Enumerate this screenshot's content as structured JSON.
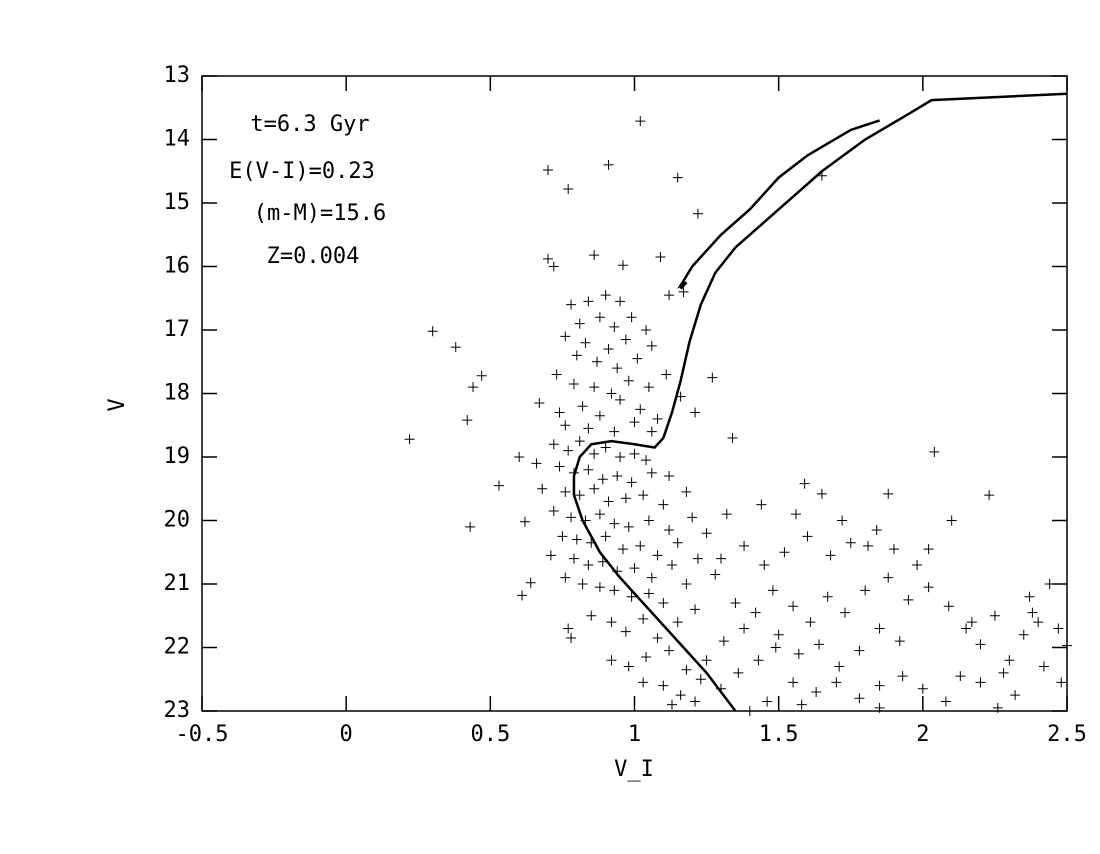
{
  "chart_data": {
    "type": "scatter",
    "x_label": "V_I",
    "y_label": "V",
    "annotations": [
      "t=6.3 Gyr",
      "E(V-I)=0.23",
      "(m-M)=15.6",
      "Z=0.004"
    ],
    "xlim": [
      -0.5,
      2.5
    ],
    "xticks": [
      -0.5,
      0,
      0.5,
      1,
      1.5,
      2,
      2.5
    ],
    "ylim": [
      23,
      13
    ],
    "yticks": [
      13,
      14,
      15,
      16,
      17,
      18,
      19,
      20,
      21,
      22,
      23
    ],
    "color": "#000000",
    "marker": "+",
    "x": [
      0.22,
      0.3,
      0.38,
      0.42,
      0.44,
      0.47,
      0.43,
      0.53,
      0.61,
      0.62,
      0.64,
      0.7,
      0.77,
      0.91,
      1.02,
      1.15,
      1.65,
      1.22,
      0.7,
      0.72,
      0.86,
      0.96,
      1.09,
      1.17,
      1.12,
      2.04,
      2.23,
      1.34,
      1.88,
      1.59,
      1.65,
      0.78,
      0.84,
      0.9,
      0.95,
      0.81,
      0.88,
      0.93,
      0.99,
      1.04,
      0.76,
      0.83,
      0.91,
      0.97,
      1.06,
      0.8,
      0.87,
      0.94,
      1.01,
      0.73,
      0.79,
      0.86,
      0.92,
      0.98,
      1.05,
      1.11,
      0.67,
      0.74,
      0.82,
      0.88,
      0.95,
      1.02,
      1.08,
      1.16,
      1.27,
      1.21,
      0.76,
      0.84,
      0.93,
      1.0,
      1.06,
      0.72,
      0.77,
      0.81,
      0.86,
      0.9,
      0.95,
      1.0,
      1.04,
      0.6,
      0.66,
      0.74,
      0.79,
      0.84,
      0.89,
      0.94,
      0.99,
      1.06,
      1.12,
      0.68,
      0.76,
      0.81,
      0.86,
      0.91,
      0.97,
      1.03,
      1.1,
      1.18,
      0.72,
      0.78,
      0.83,
      0.88,
      0.93,
      0.98,
      1.05,
      1.12,
      1.2,
      0.75,
      0.8,
      0.85,
      0.9,
      0.96,
      1.02,
      1.08,
      1.15,
      1.25,
      0.71,
      0.79,
      0.84,
      0.89,
      0.94,
      1.0,
      1.06,
      1.13,
      1.22,
      0.76,
      0.82,
      0.88,
      0.93,
      0.99,
      1.05,
      1.1,
      1.18,
      1.28,
      0.77,
      0.78,
      0.85,
      0.92,
      0.97,
      1.03,
      1.08,
      1.15,
      1.21,
      0.92,
      0.98,
      1.04,
      1.12,
      1.18,
      1.25,
      1.31,
      1.38,
      1.03,
      1.1,
      1.16,
      1.23,
      1.3,
      1.36,
      1.43,
      1.49,
      1.35,
      1.42,
      1.48,
      1.55,
      1.61,
      1.67,
      1.73,
      1.3,
      1.38,
      1.45,
      1.52,
      1.6,
      1.68,
      1.75,
      1.84,
      1.5,
      1.57,
      1.64,
      1.71,
      1.78,
      1.85,
      1.92,
      1.55,
      1.63,
      1.7,
      1.78,
      1.85,
      1.93,
      2.0,
      1.8,
      1.88,
      1.95,
      2.02,
      2.09,
      1.9,
      1.98,
      2.1,
      2.02,
      1.32,
      1.44,
      1.56,
      1.72,
      1.81,
      2.15,
      2.2,
      2.25,
      2.3,
      2.35,
      2.4,
      2.44,
      2.47,
      2.37,
      2.28,
      2.2,
      2.32,
      2.42,
      2.48,
      2.5,
      2.13,
      2.08,
      2.26,
      1.4,
      1.21,
      1.13,
      1.46,
      1.58,
      1.85,
      2.17,
      2.38
    ],
    "values": [
      18.72,
      17.02,
      17.27,
      18.42,
      17.9,
      17.72,
      20.1,
      19.45,
      21.18,
      20.02,
      20.98,
      14.48,
      14.78,
      14.4,
      13.71,
      14.6,
      14.57,
      15.17,
      15.88,
      16.0,
      15.82,
      15.98,
      15.85,
      16.4,
      16.45,
      18.92,
      19.6,
      18.7,
      19.58,
      19.42,
      19.58,
      16.6,
      16.55,
      16.45,
      16.55,
      16.9,
      16.8,
      16.95,
      16.8,
      17.0,
      17.1,
      17.2,
      17.3,
      17.15,
      17.25,
      17.4,
      17.5,
      17.6,
      17.45,
      17.7,
      17.85,
      17.9,
      18.0,
      17.8,
      17.9,
      17.7,
      18.15,
      18.3,
      18.2,
      18.35,
      18.1,
      18.25,
      18.4,
      18.05,
      17.75,
      18.3,
      18.5,
      18.55,
      18.6,
      18.45,
      18.6,
      18.8,
      18.9,
      18.75,
      18.95,
      18.85,
      19.0,
      18.95,
      19.05,
      19.0,
      19.1,
      19.15,
      19.25,
      19.2,
      19.35,
      19.3,
      19.4,
      19.25,
      19.3,
      19.5,
      19.55,
      19.6,
      19.5,
      19.7,
      19.65,
      19.6,
      19.75,
      19.55,
      19.85,
      19.95,
      20.0,
      19.9,
      20.05,
      20.1,
      20.0,
      20.15,
      19.95,
      20.25,
      20.3,
      20.35,
      20.25,
      20.45,
      20.4,
      20.55,
      20.35,
      20.2,
      20.55,
      20.6,
      20.7,
      20.65,
      20.8,
      20.75,
      20.9,
      20.7,
      20.6,
      20.9,
      21.0,
      21.05,
      21.1,
      21.2,
      21.15,
      21.3,
      21.0,
      20.85,
      21.7,
      21.85,
      21.5,
      21.6,
      21.75,
      21.55,
      21.85,
      21.6,
      21.4,
      22.2,
      22.3,
      22.15,
      22.05,
      22.35,
      22.2,
      21.9,
      21.7,
      22.55,
      22.6,
      22.75,
      22.5,
      22.65,
      22.4,
      22.2,
      22.0,
      21.3,
      21.45,
      21.1,
      21.35,
      21.6,
      21.2,
      21.45,
      20.6,
      20.4,
      20.7,
      20.5,
      20.25,
      20.55,
      20.35,
      20.15,
      21.8,
      22.1,
      21.95,
      22.3,
      22.05,
      21.7,
      21.9,
      22.55,
      22.7,
      22.55,
      22.8,
      22.6,
      22.45,
      22.65,
      21.1,
      20.9,
      21.25,
      21.05,
      21.35,
      20.45,
      20.7,
      20.0,
      20.45,
      19.9,
      19.75,
      19.9,
      20.0,
      20.4,
      21.7,
      21.95,
      21.5,
      22.2,
      21.8,
      21.6,
      21.0,
      21.7,
      21.2,
      22.4,
      22.55,
      22.75,
      22.3,
      22.55,
      21.97,
      22.45,
      22.85,
      22.95,
      23.0,
      22.85,
      22.9,
      22.85,
      22.9,
      22.95,
      21.6,
      21.45
    ],
    "lines": [
      {
        "color": "#000000",
        "x": [
          1.35,
          1.25,
          1.15,
          1.05,
          0.95,
          0.88,
          0.82,
          0.79,
          0.79,
          0.81,
          0.85,
          0.92,
          1.0,
          1.07,
          1.1,
          1.13,
          1.16,
          1.19,
          1.23,
          1.28,
          1.35,
          1.45,
          1.55,
          1.65,
          1.8,
          1.95,
          2.03,
          2.5
        ],
        "values": [
          23.0,
          22.4,
          21.9,
          21.4,
          20.9,
          20.5,
          20.0,
          19.6,
          19.3,
          19.0,
          18.8,
          18.75,
          18.8,
          18.85,
          18.7,
          18.3,
          17.8,
          17.2,
          16.6,
          16.1,
          15.7,
          15.3,
          14.9,
          14.5,
          14.0,
          13.6,
          13.38,
          13.28
        ]
      },
      {
        "color": "#000000",
        "x": [
          1.16,
          1.18,
          1.16,
          1.2,
          1.3,
          1.4,
          1.5,
          1.6,
          1.75,
          1.85
        ],
        "values": [
          16.35,
          16.25,
          16.3,
          16.0,
          15.5,
          15.1,
          14.6,
          14.25,
          13.85,
          13.7
        ]
      }
    ]
  }
}
